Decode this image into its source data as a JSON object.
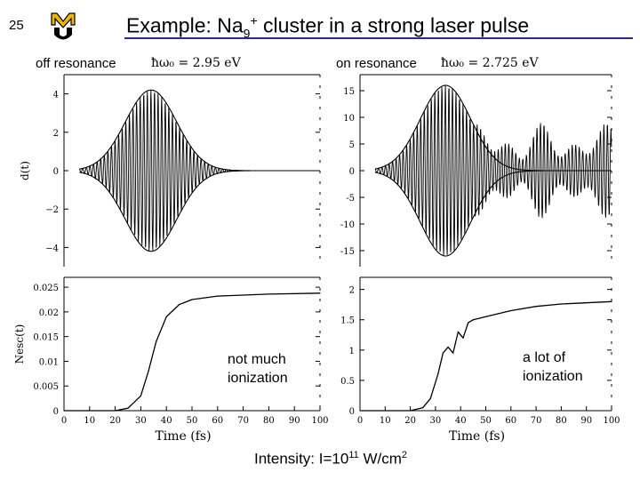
{
  "slide": {
    "number": "25",
    "title_main": "Example: Na",
    "title_sub": "9",
    "title_sup": "+",
    "title_rest": " cluster in a strong laser pulse",
    "logo_name": "university-logo-MU",
    "accent_color": "#2c2a8a"
  },
  "labels": {
    "off_resonance": "off resonance",
    "on_resonance": "on resonance",
    "off_freq": "ħω₀ = 2.95 eV",
    "on_freq": "ħω₀ = 2.725 eV",
    "off_annotation_line1": "not much",
    "off_annotation_line2": "ionization",
    "on_annotation_line1": "a lot of",
    "on_annotation_line2": "ionization",
    "footer_prefix": "Intensity: I=10",
    "footer_exp": "11",
    "footer_unit": " W/cm",
    "footer_unit_exp": "2"
  },
  "chart_data": [
    {
      "id": "dipole-off",
      "type": "line",
      "ylabel": "d(t)",
      "xlim": [
        0,
        100
      ],
      "ylim": [
        -5,
        5
      ],
      "yticks": [
        4,
        2,
        0,
        -2,
        -4
      ],
      "ytick_labels": [
        "4",
        "2",
        "0",
        "−2",
        "−4"
      ],
      "description_series": [
        "dipole oscillation",
        "envelope"
      ],
      "envelope_peak": 4.2,
      "envelope_center_fs": 34,
      "envelope_width_fs": 10
    },
    {
      "id": "dipole-on",
      "type": "line",
      "xlim": [
        0,
        100
      ],
      "ylim": [
        -18,
        18
      ],
      "yticks": [
        15,
        10,
        5,
        0,
        -5,
        -10,
        -15
      ],
      "ytick_labels": [
        "15",
        "10",
        "5",
        "0",
        "-5",
        "-10",
        "-15"
      ],
      "envelope_peak": 16,
      "envelope_center_fs": 34,
      "envelope_width_fs": 10,
      "residual_amplitude": 9
    },
    {
      "id": "nesc-off",
      "type": "line",
      "ylabel": "Nesc(t)",
      "xlabel": "Time (fs)",
      "xlim": [
        0,
        100
      ],
      "ylim": [
        0,
        0.027
      ],
      "xticks": [
        0,
        10,
        20,
        30,
        40,
        50,
        60,
        70,
        80,
        90,
        100
      ],
      "xtick_labels": [
        "0",
        "10",
        "20",
        "30",
        "40",
        "50",
        "60",
        "70",
        "80",
        "90",
        "100"
      ],
      "yticks": [
        0.025,
        0.02,
        0.015,
        0.01,
        0.005,
        0
      ],
      "ytick_labels": [
        "0.025",
        "0.02",
        "0.015",
        "0.01",
        "0.005",
        "0"
      ],
      "x": [
        0,
        20,
        25,
        30,
        33,
        36,
        40,
        45,
        50,
        60,
        80,
        100
      ],
      "y": [
        0,
        0,
        0.0005,
        0.003,
        0.008,
        0.014,
        0.019,
        0.0215,
        0.0225,
        0.0232,
        0.0236,
        0.0238
      ]
    },
    {
      "id": "nesc-on",
      "type": "line",
      "xlabel": "Time (fs)",
      "xlim": [
        0,
        100
      ],
      "ylim": [
        0,
        2.2
      ],
      "xticks": [
        0,
        10,
        20,
        30,
        40,
        50,
        60,
        70,
        80,
        90,
        100
      ],
      "xtick_labels": [
        "0",
        "10",
        "20",
        "30",
        "40",
        "50",
        "60",
        "70",
        "80",
        "90",
        "100"
      ],
      "yticks": [
        2,
        1.5,
        1,
        0.5,
        0
      ],
      "ytick_labels": [
        "2",
        "1.5",
        "1",
        "0.5",
        "0"
      ],
      "x": [
        0,
        20,
        25,
        28,
        31,
        33,
        35,
        37,
        39,
        41,
        43,
        45,
        50,
        55,
        60,
        70,
        80,
        100
      ],
      "y": [
        0,
        0,
        0.05,
        0.2,
        0.6,
        0.95,
        1.05,
        0.95,
        1.3,
        1.2,
        1.45,
        1.5,
        1.55,
        1.6,
        1.65,
        1.72,
        1.76,
        1.8
      ]
    }
  ]
}
